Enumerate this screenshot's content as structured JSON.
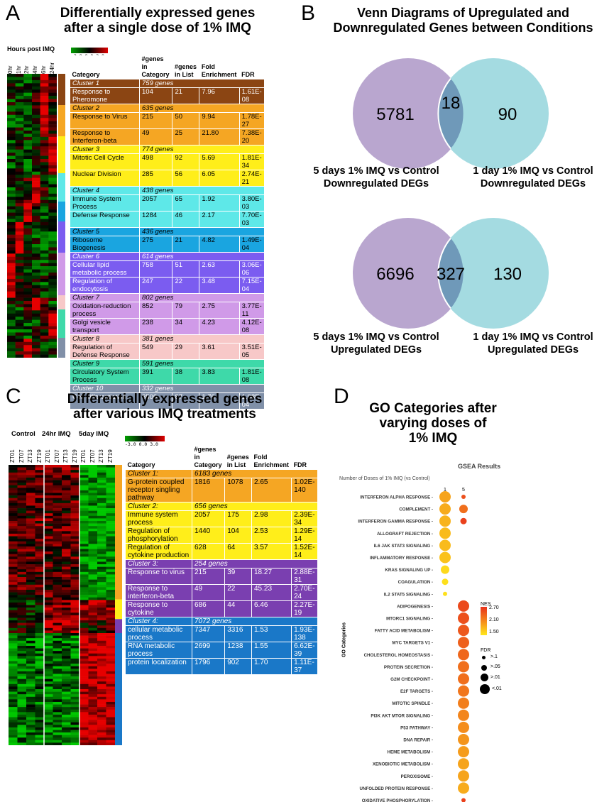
{
  "panels": {
    "a": {
      "letter": "A",
      "title": [
        "Differentially expressed genes",
        "after a single dose of 1% IMQ"
      ],
      "hours_label": "Hours post IMQ",
      "times": [
        "0hr",
        "1hr",
        "2hr",
        "4hr",
        "6hr",
        "24hr"
      ],
      "scale": "-3.0 0.0 3.0",
      "headers": [
        "Category",
        "#genes in Category",
        "#genes in List",
        "Fold Enrichment",
        "FDR"
      ],
      "clusters": [
        {
          "name": "Cluster 1",
          "genes": "759 genes",
          "color": "#8b4513",
          "text": "#ffffff",
          "rows": [
            [
              "Response to Pheromone",
              "104",
              "21",
              "7.96",
              "1.61E-08"
            ]
          ]
        },
        {
          "name": "Cluster 2",
          "genes": "635 genes",
          "color": "#f5a623",
          "text": "#000000",
          "rows": [
            [
              "Response to Virus",
              "215",
              "50",
              "9.94",
              "1.78E-27"
            ],
            [
              "Response to Interferon-beta",
              "49",
              "25",
              "21.80",
              "7.38E-20"
            ]
          ]
        },
        {
          "name": "Cluster 3",
          "genes": "774 genes",
          "color": "#ffee1a",
          "text": "#000000",
          "rows": [
            [
              "Mitotic Cell Cycle",
              "498",
              "92",
              "5.69",
              "1.81E-34"
            ],
            [
              "Nuclear Division",
              "285",
              "56",
              "6.05",
              "2.74E-21"
            ]
          ]
        },
        {
          "name": "Cluster 4",
          "genes": "438 genes",
          "color": "#5ee8e8",
          "text": "#000000",
          "rows": [
            [
              "Immune System Process",
              "2057",
              "65",
              "1.92",
              "3.80E-03"
            ],
            [
              "Defense Response",
              "1284",
              "46",
              "2.17",
              "7.70E-03"
            ]
          ]
        },
        {
          "name": "Cluster 5",
          "genes": "436 genes",
          "color": "#1aa5e0",
          "text": "#000000",
          "rows": [
            [
              "Ribosome Biogenesis",
              "275",
              "21",
              "4.82",
              "1.49E-04"
            ]
          ]
        },
        {
          "name": "Cluster 6",
          "genes": "614 genes",
          "color": "#7b5cf0",
          "text": "#ffffff",
          "rows": [
            [
              "Cellular lipid metabolic process",
              "758",
              "51",
              "2.63",
              "3.06E-06"
            ],
            [
              "Regulation of endocytosis",
              "247",
              "22",
              "3.48",
              "7.15E-04"
            ]
          ]
        },
        {
          "name": "Cluster 7",
          "genes": "802 genes",
          "color": "#d09ae8",
          "text": "#000000",
          "rows": [
            [
              "Oxidation-reduction process",
              "852",
              "79",
              "2.75",
              "3.77E-11"
            ],
            [
              "Golgi vesicle transport",
              "238",
              "34",
              "4.23",
              "4.12E-08"
            ]
          ]
        },
        {
          "name": "Cluster 8",
          "genes": "381 genes",
          "color": "#f7c8c8",
          "text": "#000000",
          "rows": [
            [
              "Regulation of Defense Response",
              "549",
              "29",
              "3.61",
              "3.51E-05"
            ]
          ]
        },
        {
          "name": "Cluster 9",
          "genes": "591 genes",
          "color": "#3ed9a9",
          "text": "#000000",
          "rows": [
            [
              "Circulatory System Process",
              "391",
              "38",
              "3.83",
              "1.81E-08"
            ]
          ]
        },
        {
          "name": "Cluster 10",
          "genes": "332 genes",
          "color": "#8090a8",
          "text": "#ffffff",
          "rows": [
            [
              "Cell differentiation",
              "3506",
              "87",
              "1.76",
              "1.08E-04"
            ]
          ]
        }
      ]
    },
    "b": {
      "letter": "B",
      "title": [
        "Venn Diagrams of Upregulated and",
        "Downregulated Genes between Conditions"
      ],
      "venns": [
        {
          "left": "5781",
          "overlap": "18",
          "right": "90",
          "left_label": [
            "5 days 1% IMQ vs Control",
            "Downregulated DEGs"
          ],
          "right_label": [
            "1 day 1% IMQ vs Control",
            "Downregulated DEGs"
          ]
        },
        {
          "left": "6696",
          "overlap": "327",
          "right": "130",
          "left_label": [
            "5 days 1% IMQ vs Control",
            "Upregulated DEGs"
          ],
          "right_label": [
            "1 day 1% IMQ vs Control",
            "Upregulated DEGs"
          ]
        }
      ],
      "colors": {
        "left": "#b9a6cf",
        "right": "#a4dbe1",
        "overlap": "#6f99b9"
      }
    },
    "c": {
      "letter": "C",
      "title": [
        "Differentially expressed genes",
        "after various IMQ treatments"
      ],
      "groups": [
        "Control",
        "24hr IMQ",
        "5day IMQ"
      ],
      "times": [
        "ZT01",
        "ZT07",
        "ZT13",
        "ZT19"
      ],
      "scale": "-3.0 0.0 3.0",
      "headers": [
        "Category",
        "#genes in Category",
        "#genes in List",
        "Fold Enrichment",
        "FDR"
      ],
      "clusters": [
        {
          "name": "Cluster 1:",
          "genes": "6183 genes",
          "color": "#f5a623",
          "text": "#000000",
          "rows": [
            [
              "G-protein coupled receptor singling pathway",
              "1816",
              "1078",
              "2.65",
              "1.02E-140"
            ]
          ]
        },
        {
          "name": "Cluster 2:",
          "genes": "656 genes",
          "color": "#ffee1a",
          "text": "#000000",
          "rows": [
            [
              "Immune system process",
              "2057",
              "175",
              "2.98",
              "2.39E-34"
            ],
            [
              "Regulation of phosphorylation",
              "1440",
              "104",
              "2.53",
              "1.29E-14"
            ],
            [
              "Regulation of cytokine production",
              "628",
              "64",
              "3.57",
              "1.52E-14"
            ]
          ]
        },
        {
          "name": "Cluster 3:",
          "genes": "254 genes",
          "color": "#7a3fb0",
          "text": "#ffffff",
          "rows": [
            [
              "Response to virus",
              "215",
              "39",
              "18.27",
              "2.88E-31"
            ],
            [
              "Response to interferon-beta",
              "49",
              "22",
              "45.23",
              "2.70E-24"
            ],
            [
              "Response to cytokine",
              "686",
              "44",
              "6.46",
              "2.27E-19"
            ]
          ]
        },
        {
          "name": "Cluster 4:",
          "genes": "7072 genes",
          "color": "#1a78c8",
          "text": "#ffffff",
          "rows": [
            [
              "cellular metabolic process",
              "7347",
              "3316",
              "1.53",
              "1.93E-138"
            ],
            [
              "RNA metabolic process",
              "2699",
              "1238",
              "1.55",
              "6.62E-39"
            ],
            [
              "protein localization",
              "1796",
              "902",
              "1.70",
              "1.11E-37"
            ]
          ]
        }
      ]
    },
    "d": {
      "letter": "D",
      "title": [
        "GO Categories after",
        "varying doses of",
        "1% IMQ"
      ],
      "subtitle": "GSEA Results",
      "xlabel": "Number of Doses of 1% IMQ (vs Control)",
      "ylabel": "GO Categories",
      "nes_label": "NES",
      "nes_ticks": [
        "2.70",
        "2.10",
        "1.50"
      ],
      "fdr_label": "FDR",
      "fdr_ticks": [
        ">.1",
        ">.05",
        ">.01",
        "<.01"
      ]
    }
  },
  "chart_data": {
    "type": "scatter",
    "title": "GSEA Results",
    "xlabel": "Number of Doses of 1% IMQ (vs Control)",
    "ylabel": "GO Categories",
    "x_categories": [
      "1",
      "5"
    ],
    "categories": [
      "INTERFERON ALPHA RESPONSE",
      "COMPLEMENT",
      "INTERFERON GAMMA RESPONSE",
      "ALLOGRAFT REJECTION",
      "IL6 JAK STAT3 SIGNALING",
      "INFLAMMATORY RESPONSE",
      "KRAS SIGNALING UP",
      "COAGULATION",
      "IL2 STAT5 SIGNALING",
      "ADIPOGENESIS",
      "MTORC1 SIGNALING",
      "FATTY ACID METABOLISM",
      "MYC TARGETS V1",
      "CHOLESTEROL HOMEOSTASIS",
      "PROTEIN SECRETION",
      "G2M CHECKPOINT",
      "E2F TARGETS",
      "MITOTIC SPINDLE",
      "PI3K AKT MTOR SIGNALING",
      "P53 PATHWAY",
      "DNA REPAIR",
      "HEME METABOLISM",
      "XENOBIOTIC METABOLISM",
      "PEROXISOME",
      "UNFOLDED PROTEIN RESPONSE",
      "OXIDATIVE PHOSPHORYLATION"
    ],
    "points": [
      {
        "category": "INTERFERON ALPHA RESPONSE",
        "dose": "1",
        "nes": 1.95,
        "fdr": "<.01"
      },
      {
        "category": "INTERFERON ALPHA RESPONSE",
        "dose": "5",
        "nes": 2.5,
        "fdr": ">.1"
      },
      {
        "category": "COMPLEMENT",
        "dose": "1",
        "nes": 1.9,
        "fdr": "<.01"
      },
      {
        "category": "COMPLEMENT",
        "dose": "5",
        "nes": 2.3,
        "fdr": ">.01"
      },
      {
        "category": "INTERFERON GAMMA RESPONSE",
        "dose": "1",
        "nes": 1.85,
        "fdr": "<.01"
      },
      {
        "category": "INTERFERON GAMMA RESPONSE",
        "dose": "5",
        "nes": 2.6,
        "fdr": ">.05"
      },
      {
        "category": "ALLOGRAFT REJECTION",
        "dose": "1",
        "nes": 1.8,
        "fdr": "<.01"
      },
      {
        "category": "IL6 JAK STAT3 SIGNALING",
        "dose": "1",
        "nes": 1.8,
        "fdr": "<.01"
      },
      {
        "category": "INFLAMMATORY RESPONSE",
        "dose": "1",
        "nes": 1.75,
        "fdr": "<.01"
      },
      {
        "category": "KRAS SIGNALING UP",
        "dose": "1",
        "nes": 1.6,
        "fdr": ">.01"
      },
      {
        "category": "COAGULATION",
        "dose": "1",
        "nes": 1.55,
        "fdr": ">.05"
      },
      {
        "category": "IL2 STAT5 SIGNALING",
        "dose": "1",
        "nes": 1.55,
        "fdr": ">.1"
      },
      {
        "category": "ADIPOGENESIS",
        "dose": "5",
        "nes": 2.55,
        "fdr": "<.01"
      },
      {
        "category": "MTORC1 SIGNALING",
        "dose": "5",
        "nes": 2.5,
        "fdr": "<.01"
      },
      {
        "category": "FATTY ACID METABOLISM",
        "dose": "5",
        "nes": 2.45,
        "fdr": "<.01"
      },
      {
        "category": "MYC TARGETS V1",
        "dose": "5",
        "nes": 2.4,
        "fdr": "<.01"
      },
      {
        "category": "CHOLESTEROL HOMEOSTASIS",
        "dose": "5",
        "nes": 2.35,
        "fdr": "<.01"
      },
      {
        "category": "PROTEIN SECRETION",
        "dose": "5",
        "nes": 2.3,
        "fdr": "<.01"
      },
      {
        "category": "G2M CHECKPOINT",
        "dose": "5",
        "nes": 2.3,
        "fdr": "<.01"
      },
      {
        "category": "E2F TARGETS",
        "dose": "5",
        "nes": 2.25,
        "fdr": "<.01"
      },
      {
        "category": "MITOTIC SPINDLE",
        "dose": "5",
        "nes": 2.2,
        "fdr": "<.01"
      },
      {
        "category": "PI3K AKT MTOR SIGNALING",
        "dose": "5",
        "nes": 2.15,
        "fdr": "<.01"
      },
      {
        "category": "P53 PATHWAY",
        "dose": "5",
        "nes": 2.1,
        "fdr": "<.01"
      },
      {
        "category": "DNA REPAIR",
        "dose": "5",
        "nes": 2.05,
        "fdr": "<.01"
      },
      {
        "category": "HEME METABOLISM",
        "dose": "5",
        "nes": 2.0,
        "fdr": "<.01"
      },
      {
        "category": "XENOBIOTIC METABOLISM",
        "dose": "5",
        "nes": 1.95,
        "fdr": "<.01"
      },
      {
        "category": "PEROXISOME",
        "dose": "5",
        "nes": 1.95,
        "fdr": "<.01"
      },
      {
        "category": "UNFOLDED PROTEIN RESPONSE",
        "dose": "5",
        "nes": 1.9,
        "fdr": "<.01"
      },
      {
        "category": "OXIDATIVE PHOSPHORYLATION",
        "dose": "5",
        "nes": 2.6,
        "fdr": ">.1"
      }
    ]
  }
}
